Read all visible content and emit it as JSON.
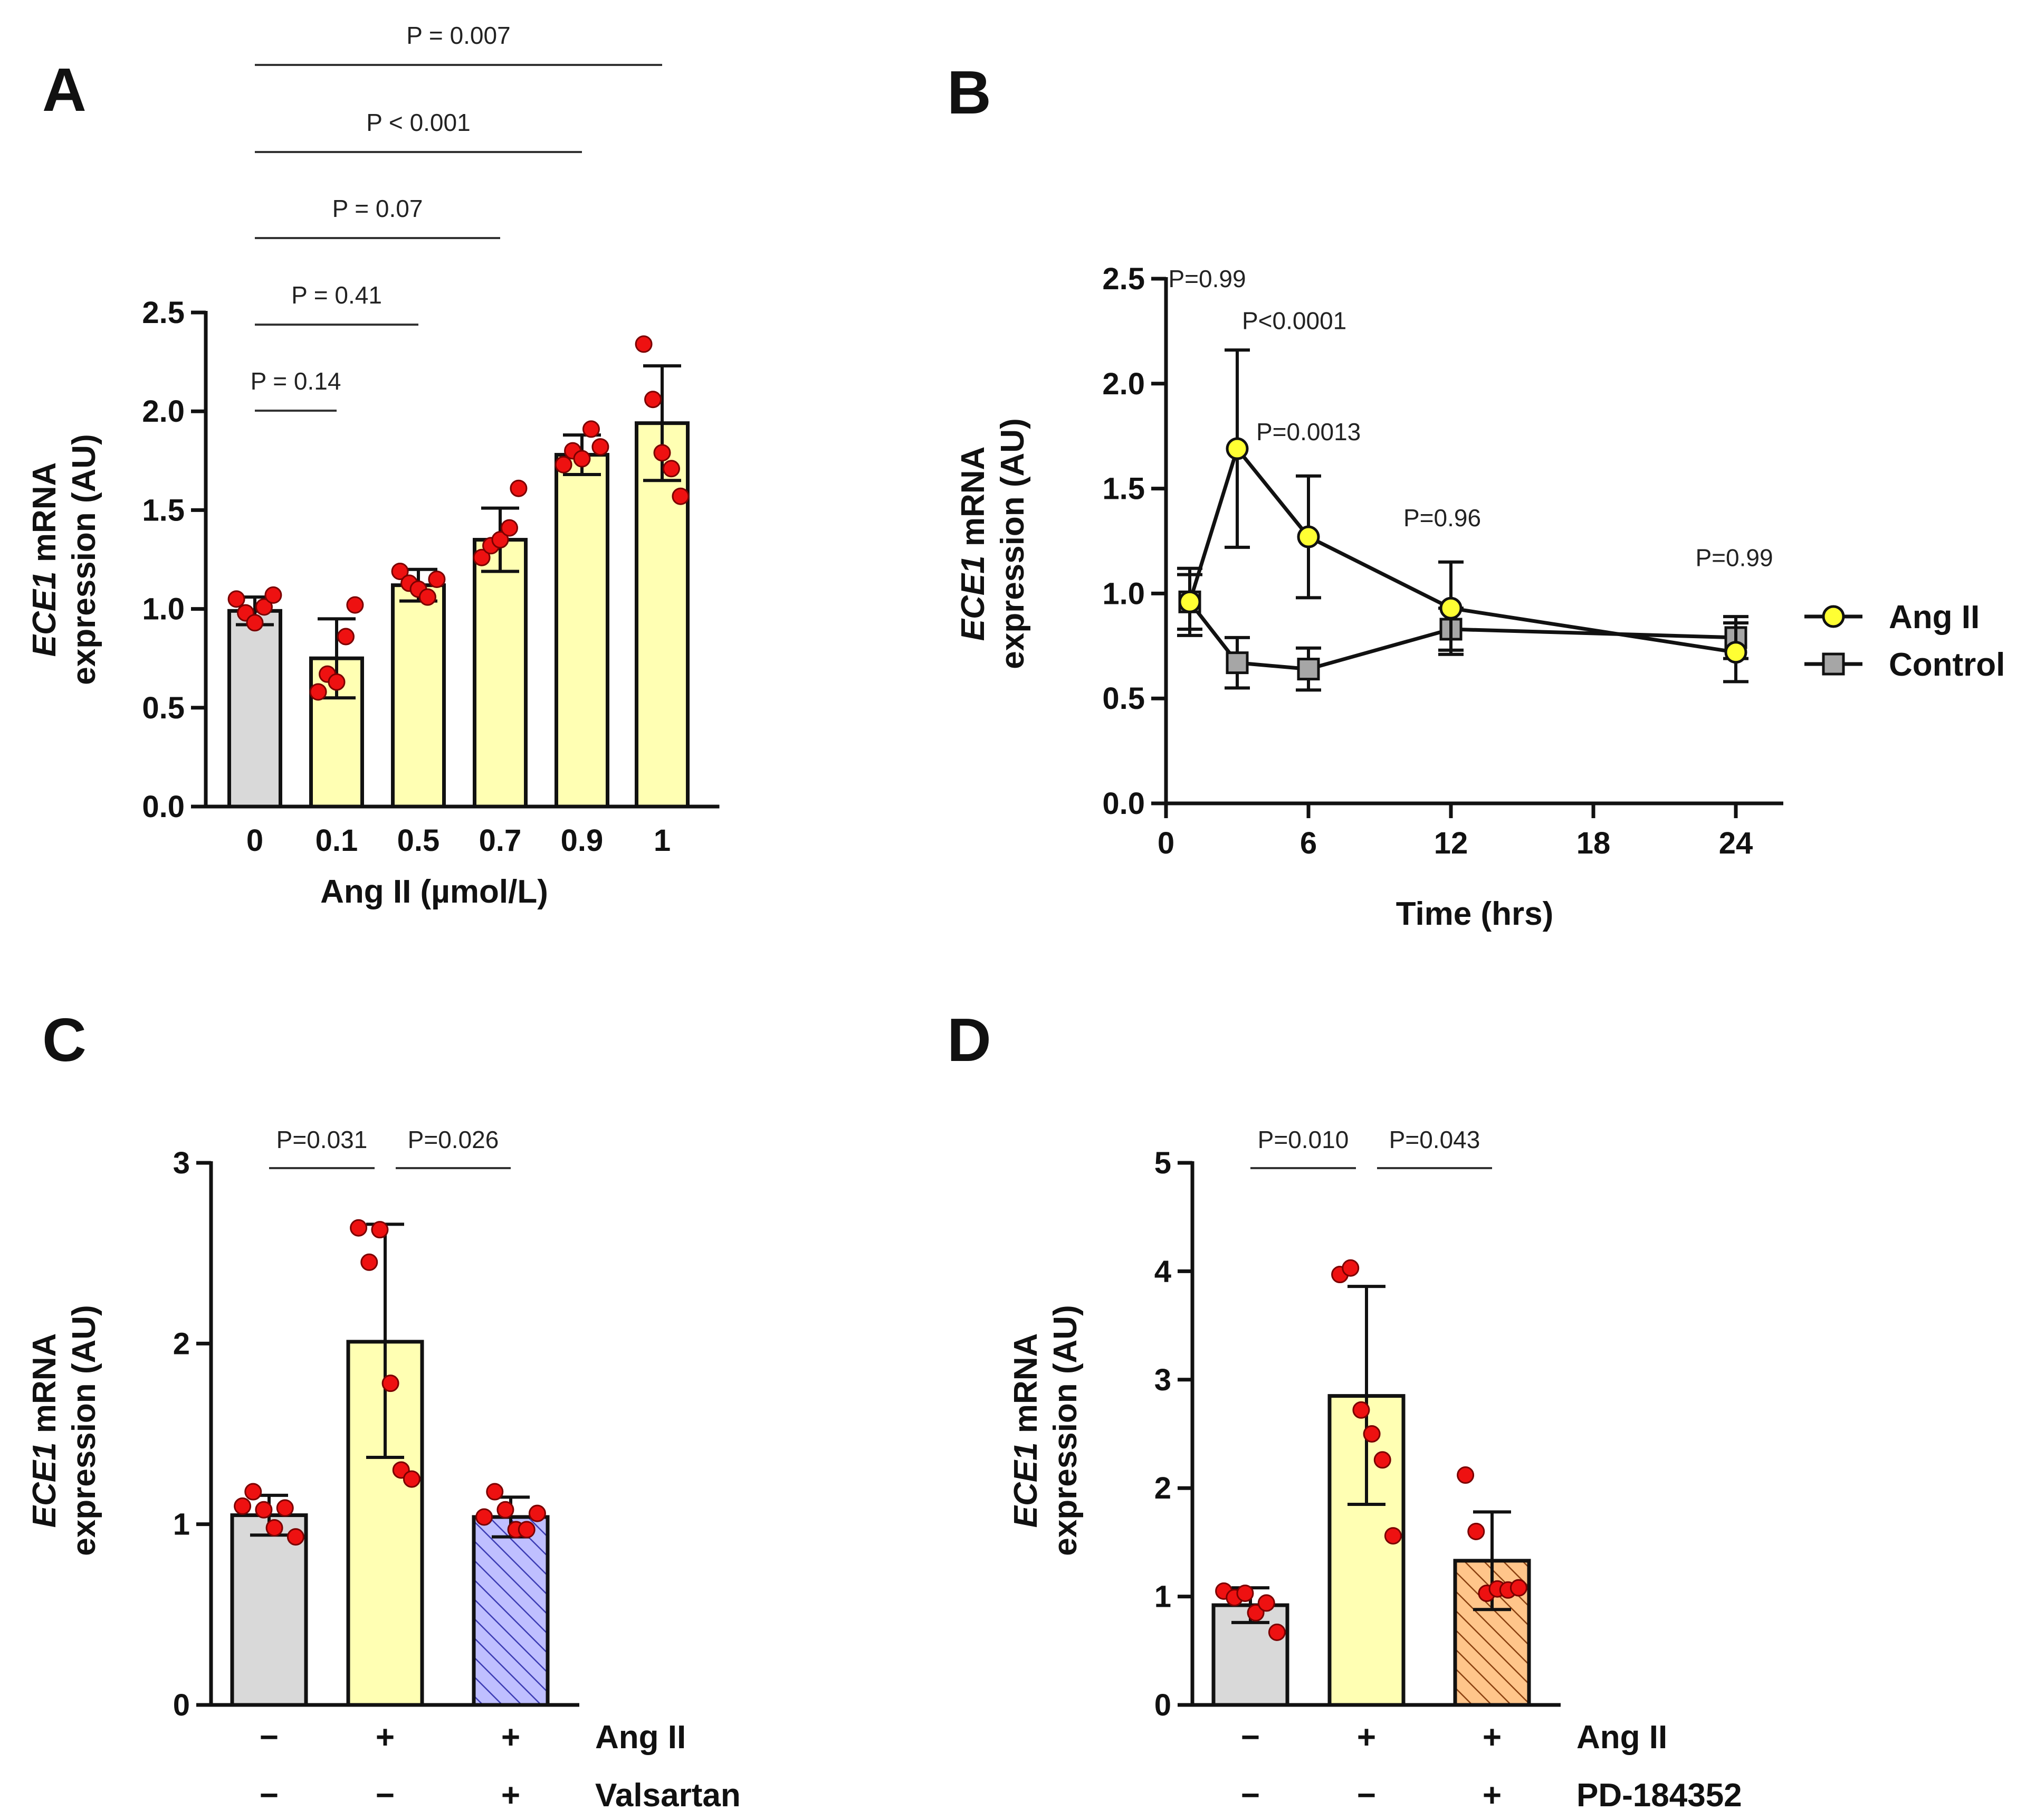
{
  "panels": {
    "A": {
      "letter": "A"
    },
    "B": {
      "letter": "B"
    },
    "C": {
      "letter": "C"
    },
    "D": {
      "letter": "D"
    }
  },
  "ylabel": {
    "italic": "ECE1",
    "rest": " mRNA",
    "line2": "expression (AU)"
  },
  "chart_data": [
    {
      "panel": "A",
      "type": "bar",
      "xlabel": "Ang II (µmol/L)",
      "ylim": [
        0,
        2.5
      ],
      "yticks": [
        "0.0",
        "0.5",
        "1.0",
        "1.5",
        "2.0",
        "2.5"
      ],
      "categories": [
        "0",
        "0.1",
        "0.5",
        "0.7",
        "0.9",
        "1"
      ],
      "values": [
        0.99,
        0.75,
        1.12,
        1.35,
        1.78,
        1.94
      ],
      "sd": [
        0.07,
        0.2,
        0.08,
        0.16,
        0.1,
        0.29
      ],
      "colors": [
        "#d9d9d9",
        "#ffffb3",
        "#ffffb3",
        "#ffffb3",
        "#ffffb3",
        "#ffffb3"
      ],
      "points": [
        [
          1.05,
          0.98,
          0.93,
          1.01,
          1.07
        ],
        [
          0.58,
          0.67,
          0.63,
          0.86,
          1.02
        ],
        [
          1.19,
          1.13,
          1.1,
          1.06,
          1.15
        ],
        [
          1.26,
          1.32,
          1.35,
          1.41,
          1.61
        ],
        [
          1.73,
          1.8,
          1.76,
          1.91,
          1.82
        ],
        [
          2.34,
          2.06,
          1.79,
          1.71,
          1.57
        ]
      ],
      "comparisons": [
        {
          "label": "P = 0.14",
          "from": 0,
          "to": 1
        },
        {
          "label": "P = 0.41",
          "from": 0,
          "to": 2
        },
        {
          "label": "P = 0.07",
          "from": 0,
          "to": 3
        },
        {
          "label": "P < 0.001",
          "from": 0,
          "to": 4
        },
        {
          "label": "P = 0.007",
          "from": 0,
          "to": 5
        }
      ]
    },
    {
      "panel": "B",
      "type": "line",
      "xlabel": "Time (hrs)",
      "xlim": [
        0,
        26
      ],
      "xticks": [
        0,
        6,
        12,
        18,
        24
      ],
      "ylim": [
        0,
        2.5
      ],
      "yticks": [
        "0.0",
        "0.5",
        "1.0",
        "1.5",
        "2.0",
        "2.5"
      ],
      "series": [
        {
          "name": "Ang II",
          "x": [
            1,
            3,
            6,
            12,
            24
          ],
          "values": [
            0.96,
            1.69,
            1.27,
            0.93,
            0.72
          ],
          "sd": [
            0.13,
            0.47,
            0.29,
            0.22,
            0.14
          ],
          "color": "#ffff33",
          "marker": "circle"
        },
        {
          "name": "Control",
          "x": [
            1,
            3,
            6,
            12,
            24
          ],
          "values": [
            0.96,
            0.67,
            0.64,
            0.83,
            0.79
          ],
          "sd": [
            0.16,
            0.12,
            0.1,
            0.1,
            0.1
          ],
          "color": "#a6a6a6",
          "marker": "square"
        }
      ],
      "annotations": [
        {
          "label": "P=0.99",
          "x": 0.1,
          "y": 2.46
        },
        {
          "label": "P<0.0001",
          "x": 3.2,
          "y": 2.26
        },
        {
          "label": "P=0.0013",
          "x": 3.8,
          "y": 1.73
        },
        {
          "label": "P=0.96",
          "x": 10.0,
          "y": 1.32
        },
        {
          "label": "P=0.99",
          "x": 22.3,
          "y": 1.13
        }
      ]
    },
    {
      "panel": "C",
      "type": "bar",
      "ylim": [
        0,
        3
      ],
      "yticks": [
        "0",
        "1",
        "2",
        "3"
      ],
      "values": [
        1.05,
        2.01,
        1.04
      ],
      "sd_up": [
        0.11,
        0.65,
        0.11
      ],
      "sd_down": [
        0.11,
        0.64,
        0.11
      ],
      "colors": [
        "#d9d9d9",
        "#ffffb3",
        "#bfbfff"
      ],
      "hatched": [
        false,
        false,
        true
      ],
      "hatch_color": "#3c3cb4",
      "points": [
        [
          1.1,
          1.18,
          1.08,
          0.98,
          1.09,
          0.93
        ],
        [
          2.64,
          2.45,
          2.63,
          1.78,
          1.3,
          1.25
        ],
        [
          1.04,
          1.18,
          1.08,
          0.97,
          0.97,
          1.06
        ]
      ],
      "conditions": [
        {
          "name": "Ang II",
          "signs": [
            "−",
            "+",
            "+"
          ]
        },
        {
          "name": "Valsartan",
          "signs": [
            "−",
            "−",
            "+"
          ]
        }
      ],
      "comparisons": [
        {
          "label": "P=0.031",
          "from": 0,
          "to": 1
        },
        {
          "label": "P=0.026",
          "from": 1,
          "to": 2
        }
      ]
    },
    {
      "panel": "D",
      "type": "bar",
      "ylim": [
        0,
        5
      ],
      "yticks": [
        "0",
        "1",
        "2",
        "3",
        "4",
        "5"
      ],
      "values": [
        0.92,
        2.85,
        1.33
      ],
      "sd_up": [
        0.16,
        1.01,
        0.45
      ],
      "sd_down": [
        0.16,
        1.0,
        0.45
      ],
      "colors": [
        "#d9d9d9",
        "#ffffb3",
        "#ffc58a"
      ],
      "hatched": [
        false,
        false,
        true
      ],
      "hatch_color": "#8a4010",
      "points": [
        [
          1.05,
          0.99,
          1.03,
          0.85,
          0.94,
          0.67
        ],
        [
          3.97,
          4.03,
          2.72,
          2.5,
          2.26,
          1.56
        ],
        [
          2.12,
          1.6,
          1.03,
          1.07,
          1.06,
          1.08
        ]
      ],
      "conditions": [
        {
          "name": "Ang II",
          "signs": [
            "−",
            "+",
            "+"
          ]
        },
        {
          "name": "PD-184352",
          "signs": [
            "−",
            "−",
            "+"
          ]
        }
      ],
      "comparisons": [
        {
          "label": "P=0.010",
          "from": 0,
          "to": 1
        },
        {
          "label": "P=0.043",
          "from": 1,
          "to": 2
        }
      ]
    }
  ]
}
